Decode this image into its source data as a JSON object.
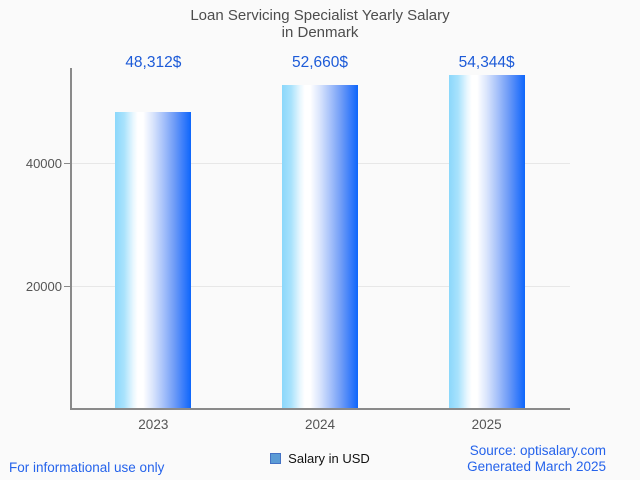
{
  "title": {
    "line1": "Loan Servicing Specialist Yearly Salary",
    "line2": "in Denmark"
  },
  "chart_data": {
    "type": "bar",
    "categories": [
      "2023",
      "2024",
      "2025"
    ],
    "values": [
      48312,
      52660,
      54344
    ],
    "value_labels": [
      "48,312$",
      "52,660$",
      "54,344$"
    ],
    "series": [
      {
        "name": "Salary in USD",
        "values": [
          48312,
          52660,
          54344
        ]
      }
    ],
    "title": "Loan Servicing Specialist Yearly Salary in Denmark",
    "xlabel": "",
    "ylabel": "",
    "yticks": [
      20000,
      40000
    ],
    "ytick_labels": [
      "20000",
      "40000"
    ],
    "ylim": [
      0,
      55450
    ],
    "grid": "horizontal-y",
    "legend_position": "bottom-center"
  },
  "legend": {
    "label": "Salary in USD"
  },
  "footer": {
    "left": "For informational use only",
    "source": "Source: optisalary.com",
    "generated": "Generated March 2025"
  },
  "colors": {
    "background": "#fafafa",
    "title_text": "#4d4d4d",
    "tick_text": "#555555",
    "axis_line": "#8a8a8a",
    "gridline": "#e7e7e7",
    "value_label_text": "#1d5bd8",
    "footer_text": "#2563eb",
    "legend_swatch_fill": "#5b9bd5",
    "legend_swatch_border": "#4472c4",
    "bar_gradient_left": "#8bd7fb",
    "bar_gradient_mid": "#ffffff",
    "bar_gradient_right": "#0d66fb"
  }
}
